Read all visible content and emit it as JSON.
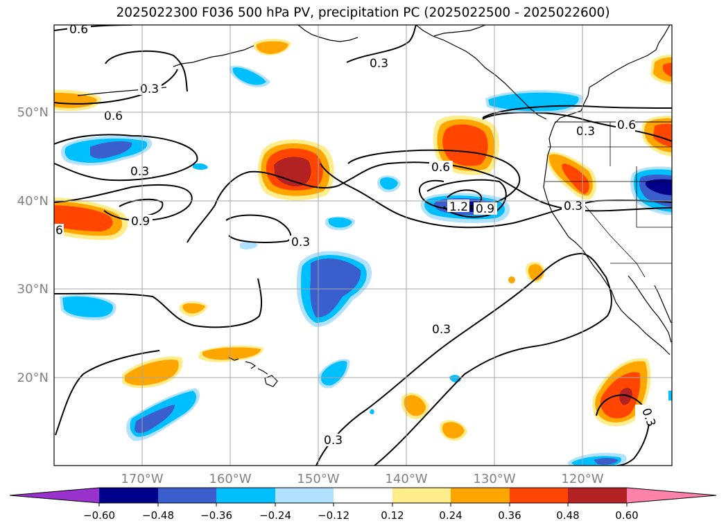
{
  "title": "2025022300 F036 500 hPa PV, precipitation PC (2025022500 - 2025022600)",
  "map": {
    "lat_labels": [
      "50°N",
      "40°N",
      "30°N",
      "20°N"
    ],
    "lon_labels": [
      "170°W",
      "160°W",
      "150°W",
      "140°W",
      "130°W",
      "120°W"
    ],
    "contour_labels": [
      "0.6",
      "0.3",
      "0.3",
      "0.3",
      "0.6",
      "0.3",
      "0.6",
      "0.6",
      "0.9",
      "1.2",
      "0.9",
      "0.3",
      "0.3",
      "6",
      "0.3",
      "0.3",
      "0.3"
    ]
  },
  "colorbar": {
    "ticks": [
      "−0.60",
      "−0.48",
      "−0.36",
      "−0.24",
      "−0.12",
      "0.12",
      "0.24",
      "0.36",
      "0.48",
      "0.60"
    ],
    "colors": [
      "#9932cc",
      "#00008b",
      "#3a5fcd",
      "#00bfff",
      "#b0e2ff",
      "#ffffff",
      "#ffec8b",
      "#ffa500",
      "#ff4500",
      "#b22222",
      "#ff82ab"
    ]
  }
}
